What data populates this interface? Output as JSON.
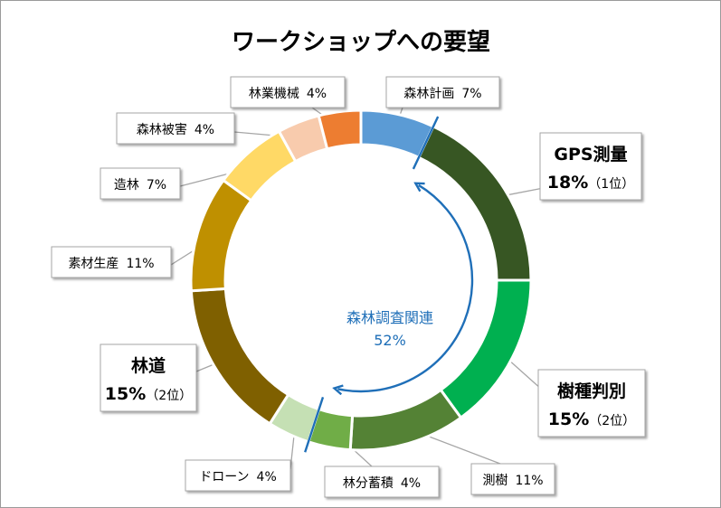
{
  "chart_data": {
    "type": "pie",
    "style": "doughnut",
    "title": "ワークショップへの要望",
    "slices": [
      {
        "name": "森林計画",
        "value": 7,
        "label": "7%",
        "color": "#5b9bd5"
      },
      {
        "name": "GPS測量",
        "value": 18,
        "label": "18%",
        "rank": "（1位）",
        "color": "#375623",
        "emphasis": true
      },
      {
        "name": "樹種判別",
        "value": 15,
        "label": "15%",
        "rank": "（2位）",
        "color": "#00b050",
        "emphasis": true
      },
      {
        "name": "測樹",
        "value": 11,
        "label": "11%",
        "color": "#548235"
      },
      {
        "name": "林分蓄積",
        "value": 4,
        "label": "4%",
        "color": "#70ad47"
      },
      {
        "name": "ドローン",
        "value": 4,
        "label": "4%",
        "color": "#c5e0b4"
      },
      {
        "name": "林道",
        "value": 15,
        "label": "15%",
        "rank": "（2位）",
        "color": "#7f6000",
        "emphasis": true
      },
      {
        "name": "素材生産",
        "value": 11,
        "label": "11%",
        "color": "#bf9000"
      },
      {
        "name": "造林",
        "value": 7,
        "label": "7%",
        "color": "#ffd966"
      },
      {
        "name": "森林被害",
        "value": 4,
        "label": "4%",
        "color": "#f8cbad"
      },
      {
        "name": "林業機械",
        "value": 4,
        "label": "4%",
        "color": "#ed7d31"
      }
    ],
    "annotation": {
      "group": "森林調査関連",
      "value": "52%",
      "color": "#1f6fb8"
    },
    "legend": "none"
  }
}
